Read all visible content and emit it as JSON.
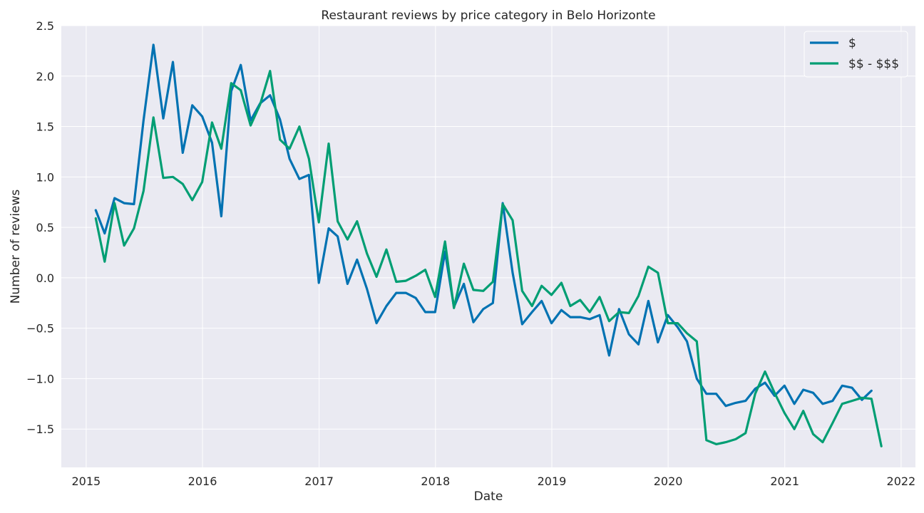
{
  "chart_data": {
    "type": "line",
    "title": "Restaurant reviews by price category in Belo Horizonte",
    "xlabel": "Date",
    "ylabel": "Number of reviews",
    "xlim": [
      "2014-10-15",
      "2022-02-15"
    ],
    "ylim": [
      -1.88,
      2.5
    ],
    "x_ticks": [
      "2015-01-01",
      "2016-01-01",
      "2017-01-01",
      "2018-01-01",
      "2019-01-01",
      "2020-01-01",
      "2021-01-01",
      "2022-01-01"
    ],
    "x_tick_labels": [
      "2015",
      "2016",
      "2017",
      "2018",
      "2019",
      "2020",
      "2021",
      "2022"
    ],
    "y_ticks": [
      -1.5,
      -1.0,
      -0.5,
      0.0,
      0.5,
      1.0,
      1.5,
      2.0,
      2.5
    ],
    "y_tick_labels": [
      "−1.5",
      "−1.0",
      "−0.5",
      "0.0",
      "0.5",
      "1.0",
      "1.5",
      "2.0",
      "2.5"
    ],
    "grid": true,
    "legend": "top-right",
    "series": [
      {
        "name": "$",
        "color": "#0072b2",
        "x": [
          "2015-01-31",
          "2015-02-28",
          "2015-03-31",
          "2015-04-30",
          "2015-05-31",
          "2015-06-30",
          "2015-07-31",
          "2015-08-31",
          "2015-09-30",
          "2015-10-31",
          "2015-11-30",
          "2015-12-31",
          "2016-01-31",
          "2016-02-29",
          "2016-03-31",
          "2016-04-30",
          "2016-05-31",
          "2016-06-30",
          "2016-07-31",
          "2016-08-31",
          "2016-09-30",
          "2016-10-31",
          "2016-11-30",
          "2016-12-31",
          "2017-01-31",
          "2017-02-28",
          "2017-03-31",
          "2017-04-30",
          "2017-05-31",
          "2017-06-30",
          "2017-07-31",
          "2017-08-31",
          "2017-09-30",
          "2017-10-31",
          "2017-11-30",
          "2017-12-31",
          "2018-01-31",
          "2018-02-28",
          "2018-03-31",
          "2018-04-30",
          "2018-05-31",
          "2018-06-30",
          "2018-07-31",
          "2018-08-31",
          "2018-09-30",
          "2018-10-31",
          "2018-11-30",
          "2018-12-31",
          "2019-01-31",
          "2019-02-28",
          "2019-03-31",
          "2019-04-30",
          "2019-05-31",
          "2019-06-30",
          "2019-07-31",
          "2019-08-31",
          "2019-09-30",
          "2019-10-31",
          "2019-11-30",
          "2019-12-31",
          "2020-01-31",
          "2020-02-29",
          "2020-03-31",
          "2020-04-30",
          "2020-05-31",
          "2020-06-30",
          "2020-07-31",
          "2020-08-31",
          "2020-09-30",
          "2020-10-31",
          "2020-11-30",
          "2020-12-31",
          "2021-01-31",
          "2021-02-28",
          "2021-03-31",
          "2021-04-30",
          "2021-05-31",
          "2021-06-30",
          "2021-07-31",
          "2021-08-31",
          "2021-09-30"
        ],
        "y": [
          0.67,
          0.44,
          0.79,
          0.74,
          0.73,
          1.56,
          2.31,
          1.58,
          2.14,
          1.24,
          1.71,
          1.6,
          1.34,
          0.61,
          1.85,
          2.11,
          1.56,
          1.73,
          1.81,
          1.57,
          1.18,
          0.98,
          1.02,
          -0.05,
          0.49,
          0.41,
          -0.06,
          0.18,
          -0.11,
          -0.45,
          -0.28,
          -0.15,
          -0.15,
          -0.2,
          -0.34,
          -0.34,
          0.26,
          -0.29,
          -0.06,
          -0.44,
          -0.31,
          -0.25,
          0.74,
          0.05,
          -0.46,
          -0.34,
          -0.23,
          -0.45,
          -0.32,
          -0.39,
          -0.39,
          -0.41,
          -0.37,
          -0.77,
          -0.31,
          -0.56,
          -0.66,
          -0.23,
          -0.64,
          -0.37,
          -0.49,
          -0.63,
          -1.0,
          -1.15,
          -1.15,
          -1.27,
          -1.24,
          -1.22,
          -1.1,
          -1.04,
          -1.17,
          -1.07,
          -1.25,
          -1.11,
          -1.14,
          -1.25,
          -1.22,
          -1.07,
          -1.09,
          -1.21,
          -1.12
        ]
      },
      {
        "name": "$$ - $$$",
        "color": "#009e73",
        "x": [
          "2015-01-31",
          "2015-02-28",
          "2015-03-31",
          "2015-04-30",
          "2015-05-31",
          "2015-06-30",
          "2015-07-31",
          "2015-08-31",
          "2015-09-30",
          "2015-10-31",
          "2015-11-30",
          "2015-12-31",
          "2016-01-31",
          "2016-02-29",
          "2016-03-31",
          "2016-04-30",
          "2016-05-31",
          "2016-06-30",
          "2016-07-31",
          "2016-08-31",
          "2016-09-30",
          "2016-10-31",
          "2016-11-30",
          "2016-12-31",
          "2017-01-31",
          "2017-02-28",
          "2017-03-31",
          "2017-04-30",
          "2017-05-31",
          "2017-06-30",
          "2017-07-31",
          "2017-08-31",
          "2017-09-30",
          "2017-10-31",
          "2017-11-30",
          "2017-12-31",
          "2018-01-31",
          "2018-02-28",
          "2018-03-31",
          "2018-04-30",
          "2018-05-31",
          "2018-06-30",
          "2018-07-31",
          "2018-08-31",
          "2018-09-30",
          "2018-10-31",
          "2018-11-30",
          "2018-12-31",
          "2019-01-31",
          "2019-02-28",
          "2019-03-31",
          "2019-04-30",
          "2019-05-31",
          "2019-06-30",
          "2019-07-31",
          "2019-08-31",
          "2019-09-30",
          "2019-10-31",
          "2019-11-30",
          "2019-12-31",
          "2020-01-31",
          "2020-02-29",
          "2020-03-31",
          "2020-04-30",
          "2020-05-31",
          "2020-06-30",
          "2020-07-31",
          "2020-08-31",
          "2020-09-30",
          "2020-10-31",
          "2020-11-30",
          "2020-12-31",
          "2021-01-31",
          "2021-02-28",
          "2021-03-31",
          "2021-04-30",
          "2021-05-31",
          "2021-06-30",
          "2021-07-31",
          "2021-08-31",
          "2021-09-30",
          "2021-10-31"
        ],
        "y": [
          0.59,
          0.16,
          0.74,
          0.32,
          0.49,
          0.86,
          1.59,
          0.99,
          1.0,
          0.93,
          0.77,
          0.95,
          1.54,
          1.28,
          1.93,
          1.86,
          1.51,
          1.72,
          2.05,
          1.37,
          1.28,
          1.5,
          1.18,
          0.55,
          1.33,
          0.56,
          0.38,
          0.56,
          0.24,
          0.01,
          0.28,
          -0.04,
          -0.03,
          0.02,
          0.08,
          -0.19,
          0.36,
          -0.3,
          0.14,
          -0.12,
          -0.13,
          -0.04,
          0.73,
          0.57,
          -0.13,
          -0.28,
          -0.08,
          -0.17,
          -0.05,
          -0.28,
          -0.22,
          -0.34,
          -0.19,
          -0.43,
          -0.34,
          -0.35,
          -0.18,
          0.11,
          0.05,
          -0.45,
          -0.45,
          -0.55,
          -0.63,
          -1.61,
          -1.65,
          -1.63,
          -1.6,
          -1.54,
          -1.15,
          -0.93,
          -1.14,
          -1.34,
          -1.5,
          -1.32,
          -1.55,
          -1.63,
          -1.44,
          -1.25,
          -1.22,
          -1.19,
          -1.2,
          -1.67
        ]
      }
    ]
  }
}
